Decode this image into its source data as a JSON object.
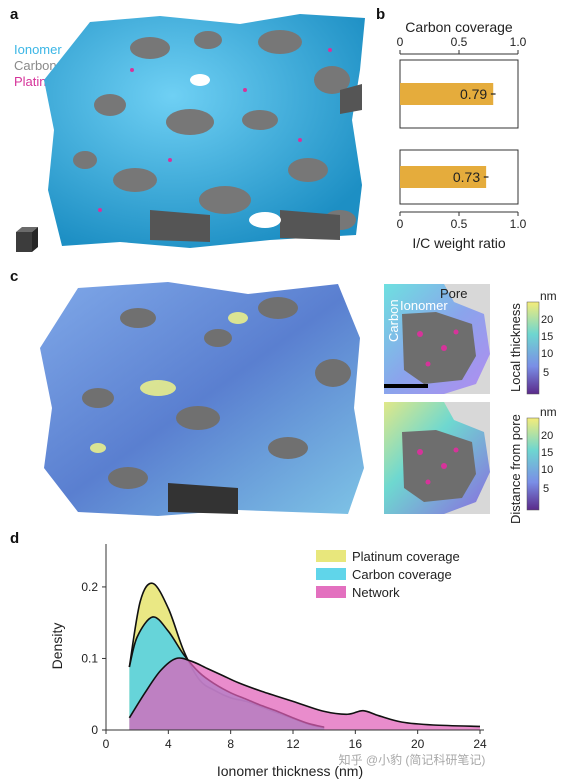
{
  "panel_a": {
    "letter": "a",
    "legend": [
      {
        "label": "Ionomer",
        "color": "#3bb6e6"
      },
      {
        "label": "Carbon",
        "color": "#8a8a8a"
      },
      {
        "label": "Platinum",
        "color": "#d6339a"
      }
    ]
  },
  "panel_b": {
    "letter": "b",
    "chart_data": {
      "type": "bar",
      "orientation": "horizontal",
      "top_title": "Carbon coverage",
      "bottom_title": "I/C weight ratio",
      "xlim": [
        0,
        1
      ],
      "ticks": [
        "0",
        "0.5",
        "1.0"
      ],
      "bar_color": "#e5ac3c",
      "bars": [
        {
          "label": "0.79",
          "value": 0.79,
          "error": 0.02
        },
        {
          "label": "0.73",
          "value": 0.73,
          "error": 0.02
        }
      ]
    }
  },
  "panel_c": {
    "letter": "c",
    "inset_labels": {
      "carbon": "Carbon",
      "ionomer": "Ionomer",
      "pore": "Pore"
    },
    "colorbar_1": {
      "unit": "nm",
      "title": "Local thickness",
      "ticks": [
        "20",
        "15",
        "10",
        "5"
      ]
    },
    "colorbar_2": {
      "unit": "nm",
      "title": "Distance from pore",
      "ticks": [
        "20",
        "15",
        "10",
        "5"
      ]
    }
  },
  "panel_d": {
    "letter": "d",
    "watermark": "知乎 @小豹 (简记科研笔记)",
    "chart_data": {
      "type": "area",
      "xlabel": "Ionomer thickness (nm)",
      "ylabel": "Density",
      "xlim": [
        0,
        24
      ],
      "ylim": [
        0,
        0.26
      ],
      "xticks": [
        "0",
        "4",
        "8",
        "12",
        "16",
        "20",
        "24"
      ],
      "yticks": [
        "0",
        "0.1",
        "0.2"
      ],
      "legend_position": "top-right",
      "series": [
        {
          "name": "Platinum coverage",
          "color": "#e6e46e",
          "x": [
            1.5,
            2.2,
            3.0,
            4.0,
            5.0,
            6.0,
            7.0,
            8.0,
            9.0,
            10.0,
            11.0,
            12.0,
            13.0,
            14.0
          ],
          "y": [
            0.088,
            0.18,
            0.205,
            0.17,
            0.11,
            0.07,
            0.055,
            0.045,
            0.04,
            0.032,
            0.024,
            0.016,
            0.008,
            0.003
          ]
        },
        {
          "name": "Carbon coverage",
          "color": "#4fd0e8",
          "x": [
            1.5,
            2.0,
            3.0,
            4.0,
            5.0,
            6.0,
            7.0,
            8.0,
            9.0,
            10.0,
            11.0,
            12.0,
            13.0,
            14.0
          ],
          "y": [
            0.088,
            0.13,
            0.158,
            0.138,
            0.105,
            0.08,
            0.064,
            0.052,
            0.043,
            0.034,
            0.026,
            0.017,
            0.009,
            0.004
          ]
        },
        {
          "name": "Network",
          "color": "#e060b8",
          "x": [
            1.5,
            2.5,
            3.5,
            4.5,
            5.5,
            6.5,
            7.5,
            8.5,
            10.0,
            12.0,
            14.0,
            15.5,
            16.5,
            17.5,
            19.0,
            21.0,
            24.0
          ],
          "y": [
            0.017,
            0.052,
            0.083,
            0.1,
            0.096,
            0.086,
            0.076,
            0.066,
            0.054,
            0.04,
            0.026,
            0.022,
            0.027,
            0.02,
            0.011,
            0.007,
            0.005
          ]
        }
      ]
    }
  }
}
